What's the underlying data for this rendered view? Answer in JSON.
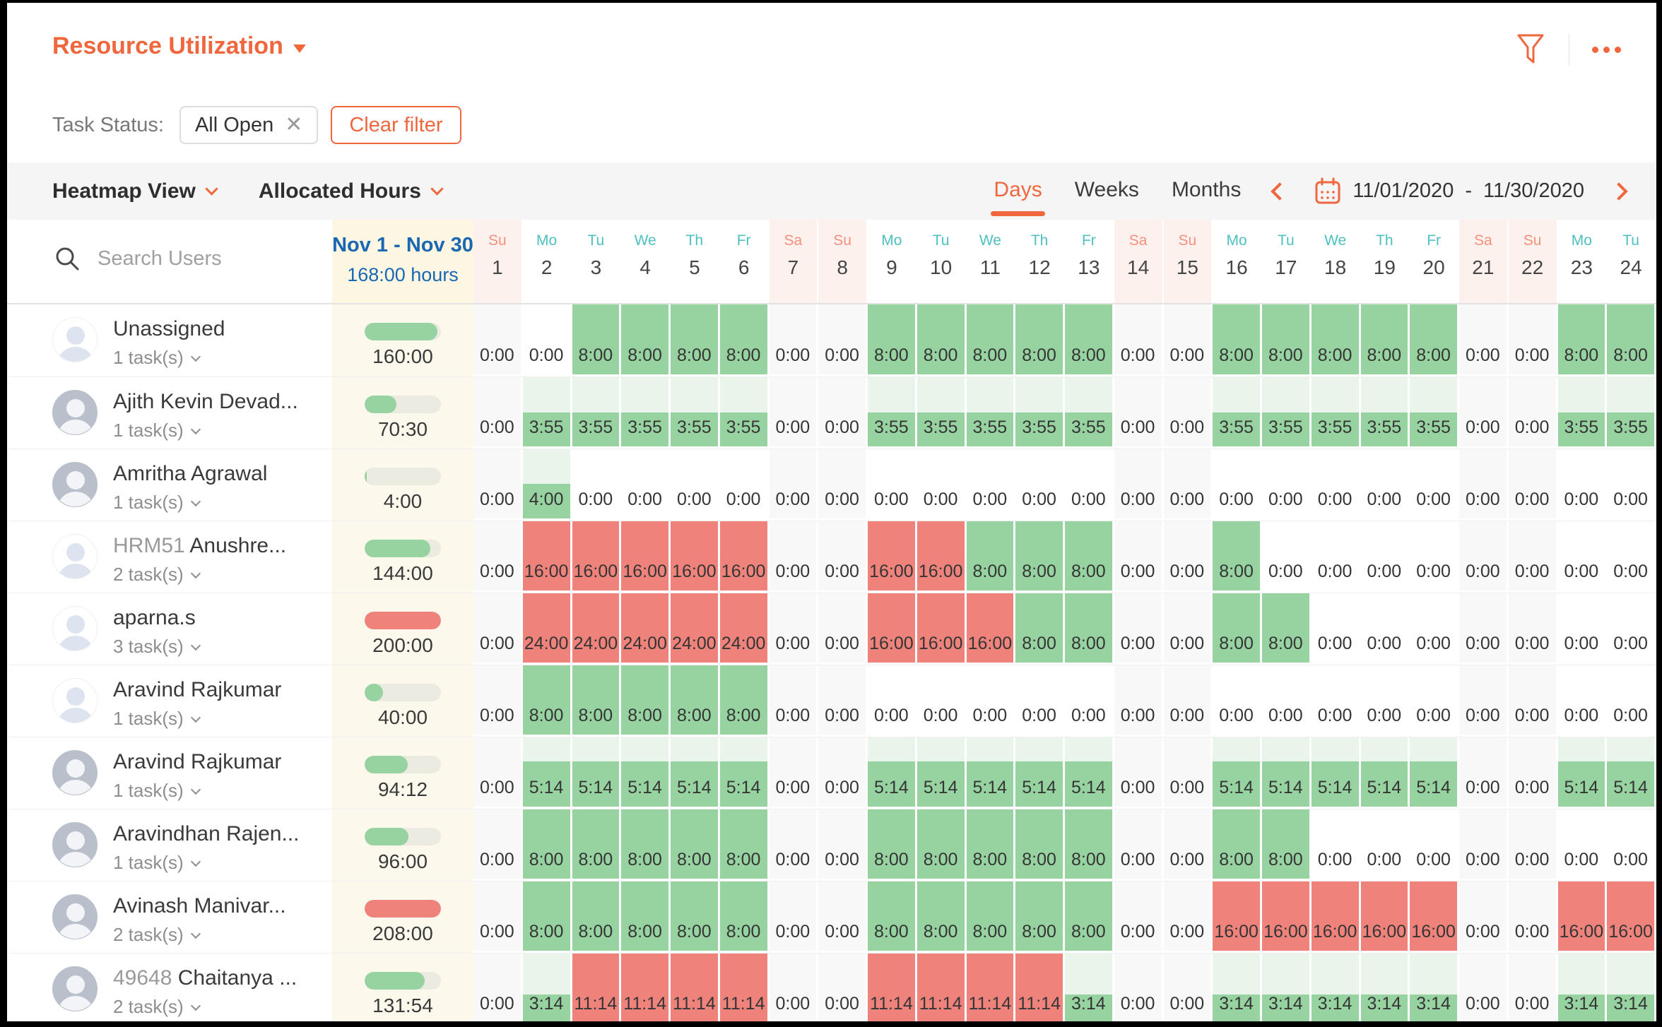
{
  "colors": {
    "accent": "#f0673d",
    "green": "#96d3a0",
    "green_light": "#e9f5ea",
    "red": "#ef837c",
    "teal": "#4ec0bf",
    "salmon": "#f5907e",
    "blue": "#1a67b2"
  },
  "header": {
    "title": "Resource Utilization",
    "task_status_label": "Task Status:",
    "filter_chip": "All Open",
    "clear_filter_label": "Clear filter",
    "icons": [
      "filter-funnel-icon",
      "more-ellipsis-icon"
    ]
  },
  "toolbar": {
    "view_selector": "Heatmap View",
    "metric_selector": "Allocated Hours",
    "tabs": [
      {
        "label": "Days",
        "active": true
      },
      {
        "label": "Weeks",
        "active": false
      },
      {
        "label": "Months",
        "active": false
      }
    ],
    "date_start": "11/01/2020",
    "date_separator": "-",
    "date_end": "11/30/2020",
    "icons": [
      "chevron-left-icon",
      "calendar-icon",
      "chevron-right-icon"
    ]
  },
  "search": {
    "placeholder": "Search Users",
    "icon": "search-icon"
  },
  "period": {
    "range_label": "Nov 1 - Nov 30",
    "capacity_label": "168:00 hours",
    "daily_capacity_hours": 8,
    "period_capacity_hours": 168
  },
  "day_columns": [
    {
      "dow": "Su",
      "date": "1",
      "weekend": true
    },
    {
      "dow": "Mo",
      "date": "2",
      "weekend": false
    },
    {
      "dow": "Tu",
      "date": "3",
      "weekend": false
    },
    {
      "dow": "We",
      "date": "4",
      "weekend": false
    },
    {
      "dow": "Th",
      "date": "5",
      "weekend": false
    },
    {
      "dow": "Fr",
      "date": "6",
      "weekend": false
    },
    {
      "dow": "Sa",
      "date": "7",
      "weekend": true
    },
    {
      "dow": "Su",
      "date": "8",
      "weekend": true
    },
    {
      "dow": "Mo",
      "date": "9",
      "weekend": false
    },
    {
      "dow": "Tu",
      "date": "10",
      "weekend": false
    },
    {
      "dow": "We",
      "date": "11",
      "weekend": false
    },
    {
      "dow": "Th",
      "date": "12",
      "weekend": false
    },
    {
      "dow": "Fr",
      "date": "13",
      "weekend": false
    },
    {
      "dow": "Sa",
      "date": "14",
      "weekend": true
    },
    {
      "dow": "Su",
      "date": "15",
      "weekend": true
    },
    {
      "dow": "Mo",
      "date": "16",
      "weekend": false
    },
    {
      "dow": "Tu",
      "date": "17",
      "weekend": false
    },
    {
      "dow": "We",
      "date": "18",
      "weekend": false
    },
    {
      "dow": "Th",
      "date": "19",
      "weekend": false
    },
    {
      "dow": "Fr",
      "date": "20",
      "weekend": false
    },
    {
      "dow": "Sa",
      "date": "21",
      "weekend": true
    },
    {
      "dow": "Su",
      "date": "22",
      "weekend": true
    },
    {
      "dow": "Mo",
      "date": "23",
      "weekend": false
    },
    {
      "dow": "Tu",
      "date": "24",
      "weekend": false
    }
  ],
  "users": [
    {
      "name_prefix": "",
      "name": "Unassigned",
      "tasks": "1 task(s)",
      "total": "160:00",
      "avatar": "placeholder",
      "daily_hours": [
        "0:00",
        "0:00",
        "8:00",
        "8:00",
        "8:00",
        "8:00",
        "0:00",
        "0:00",
        "8:00",
        "8:00",
        "8:00",
        "8:00",
        "8:00",
        "0:00",
        "0:00",
        "8:00",
        "8:00",
        "8:00",
        "8:00",
        "8:00",
        "0:00",
        "0:00",
        "8:00",
        "8:00"
      ]
    },
    {
      "name_prefix": "",
      "name": "Ajith Kevin Devad...",
      "tasks": "1 task(s)",
      "total": "70:30",
      "avatar": "photo",
      "daily_hours": [
        "0:00",
        "3:55",
        "3:55",
        "3:55",
        "3:55",
        "3:55",
        "0:00",
        "0:00",
        "3:55",
        "3:55",
        "3:55",
        "3:55",
        "3:55",
        "0:00",
        "0:00",
        "3:55",
        "3:55",
        "3:55",
        "3:55",
        "3:55",
        "0:00",
        "0:00",
        "3:55",
        "3:55"
      ]
    },
    {
      "name_prefix": "",
      "name": "Amritha Agrawal",
      "tasks": "1 task(s)",
      "total": "4:00",
      "avatar": "photo",
      "daily_hours": [
        "0:00",
        "4:00",
        "0:00",
        "0:00",
        "0:00",
        "0:00",
        "0:00",
        "0:00",
        "0:00",
        "0:00",
        "0:00",
        "0:00",
        "0:00",
        "0:00",
        "0:00",
        "0:00",
        "0:00",
        "0:00",
        "0:00",
        "0:00",
        "0:00",
        "0:00",
        "0:00",
        "0:00"
      ]
    },
    {
      "name_prefix": "HRM51 ",
      "name": "Anushre...",
      "tasks": "2 task(s)",
      "total": "144:00",
      "avatar": "placeholder",
      "daily_hours": [
        "0:00",
        "16:00",
        "16:00",
        "16:00",
        "16:00",
        "16:00",
        "0:00",
        "0:00",
        "16:00",
        "16:00",
        "8:00",
        "8:00",
        "8:00",
        "0:00",
        "0:00",
        "8:00",
        "0:00",
        "0:00",
        "0:00",
        "0:00",
        "0:00",
        "0:00",
        "0:00",
        "0:00"
      ]
    },
    {
      "name_prefix": "",
      "name": "aparna.s",
      "tasks": "3 task(s)",
      "total": "200:00",
      "avatar": "placeholder",
      "daily_hours": [
        "0:00",
        "24:00",
        "24:00",
        "24:00",
        "24:00",
        "24:00",
        "0:00",
        "0:00",
        "16:00",
        "16:00",
        "16:00",
        "8:00",
        "8:00",
        "0:00",
        "0:00",
        "8:00",
        "8:00",
        "0:00",
        "0:00",
        "0:00",
        "0:00",
        "0:00",
        "0:00",
        "0:00"
      ]
    },
    {
      "name_prefix": "",
      "name": "Aravind Rajkumar",
      "tasks": "1 task(s)",
      "total": "40:00",
      "avatar": "placeholder",
      "daily_hours": [
        "0:00",
        "8:00",
        "8:00",
        "8:00",
        "8:00",
        "8:00",
        "0:00",
        "0:00",
        "0:00",
        "0:00",
        "0:00",
        "0:00",
        "0:00",
        "0:00",
        "0:00",
        "0:00",
        "0:00",
        "0:00",
        "0:00",
        "0:00",
        "0:00",
        "0:00",
        "0:00",
        "0:00"
      ]
    },
    {
      "name_prefix": "",
      "name": "Aravind Rajkumar",
      "tasks": "1 task(s)",
      "total": "94:12",
      "avatar": "photo",
      "daily_hours": [
        "0:00",
        "5:14",
        "5:14",
        "5:14",
        "5:14",
        "5:14",
        "0:00",
        "0:00",
        "5:14",
        "5:14",
        "5:14",
        "5:14",
        "5:14",
        "0:00",
        "0:00",
        "5:14",
        "5:14",
        "5:14",
        "5:14",
        "5:14",
        "0:00",
        "0:00",
        "5:14",
        "5:14"
      ]
    },
    {
      "name_prefix": "",
      "name": "Aravindhan Rajen...",
      "tasks": "1 task(s)",
      "total": "96:00",
      "avatar": "photo",
      "daily_hours": [
        "0:00",
        "8:00",
        "8:00",
        "8:00",
        "8:00",
        "8:00",
        "0:00",
        "0:00",
        "8:00",
        "8:00",
        "8:00",
        "8:00",
        "8:00",
        "0:00",
        "0:00",
        "8:00",
        "8:00",
        "0:00",
        "0:00",
        "0:00",
        "0:00",
        "0:00",
        "0:00",
        "0:00"
      ]
    },
    {
      "name_prefix": "",
      "name": "Avinash Manivar...",
      "tasks": "2 task(s)",
      "total": "208:00",
      "avatar": "photo",
      "daily_hours": [
        "0:00",
        "8:00",
        "8:00",
        "8:00",
        "8:00",
        "8:00",
        "0:00",
        "0:00",
        "8:00",
        "8:00",
        "8:00",
        "8:00",
        "8:00",
        "0:00",
        "0:00",
        "16:00",
        "16:00",
        "16:00",
        "16:00",
        "16:00",
        "0:00",
        "0:00",
        "16:00",
        "16:00"
      ]
    },
    {
      "name_prefix": "49648 ",
      "name": "Chaitanya ...",
      "tasks": "2 task(s)",
      "total": "131:54",
      "avatar": "photo",
      "daily_hours": [
        "0:00",
        "3:14",
        "11:14",
        "11:14",
        "11:14",
        "11:14",
        "0:00",
        "0:00",
        "11:14",
        "11:14",
        "11:14",
        "11:14",
        "3:14",
        "0:00",
        "0:00",
        "3:14",
        "3:14",
        "3:14",
        "3:14",
        "3:14",
        "0:00",
        "0:00",
        "3:14",
        "3:14"
      ]
    }
  ]
}
